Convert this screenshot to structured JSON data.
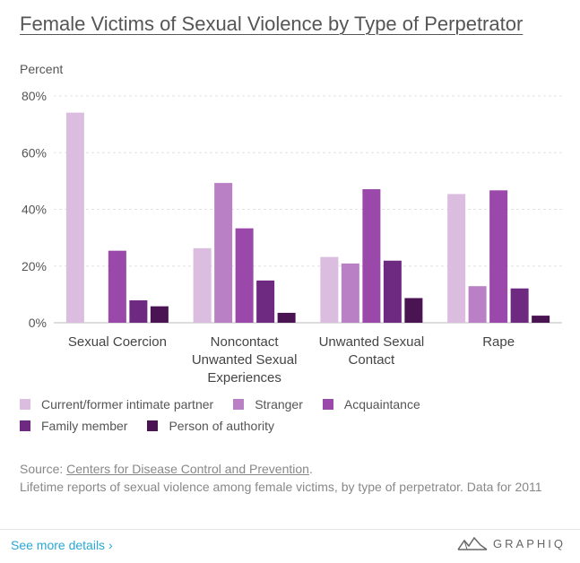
{
  "title": "Female Victims of Sexual Violence by Type of Perpetrator",
  "source_prefix": "Source: ",
  "source_link": "Centers for Disease Control and Prevention",
  "source_suffix": ".",
  "note": "Lifetime reports of sexual violence among female victims, by type of perpetrator. Data for 2011",
  "see_more": "See more details ›",
  "brand": "GRAPHIQ",
  "colors": {
    "series": [
      "#dbbde0",
      "#b980c5",
      "#9a48aa",
      "#6e2a80",
      "#4a1352"
    ],
    "grid": "#e3e3e3",
    "axis": "#bbbbbb",
    "text": "#555555",
    "link": "#2aa7d6"
  },
  "chart_data": {
    "type": "bar",
    "ylabel": "Percent",
    "ylim": [
      0,
      80
    ],
    "yticks": [
      0,
      20,
      40,
      60,
      80
    ],
    "ytick_labels": [
      "0%",
      "20%",
      "40%",
      "60%",
      "80%"
    ],
    "categories": [
      [
        "Sexual Coercion"
      ],
      [
        "Noncontact",
        "Unwanted Sexual",
        "Experiences"
      ],
      [
        "Unwanted Sexual",
        "Contact"
      ],
      [
        "Rape"
      ]
    ],
    "series": [
      {
        "name": "Current/former intimate partner",
        "values": [
          74.1,
          26.3,
          23.2,
          45.4
        ]
      },
      {
        "name": "Stranger",
        "values": [
          null,
          49.3,
          20.9,
          12.9
        ]
      },
      {
        "name": "Acquaintance",
        "values": [
          25.4,
          33.3,
          47.1,
          46.7
        ]
      },
      {
        "name": "Family member",
        "values": [
          7.9,
          14.9,
          21.9,
          12.1
        ]
      },
      {
        "name": "Person of authority",
        "values": [
          5.8,
          3.5,
          8.7,
          2.5
        ]
      }
    ],
    "grid": true,
    "legend_position": "bottom"
  }
}
